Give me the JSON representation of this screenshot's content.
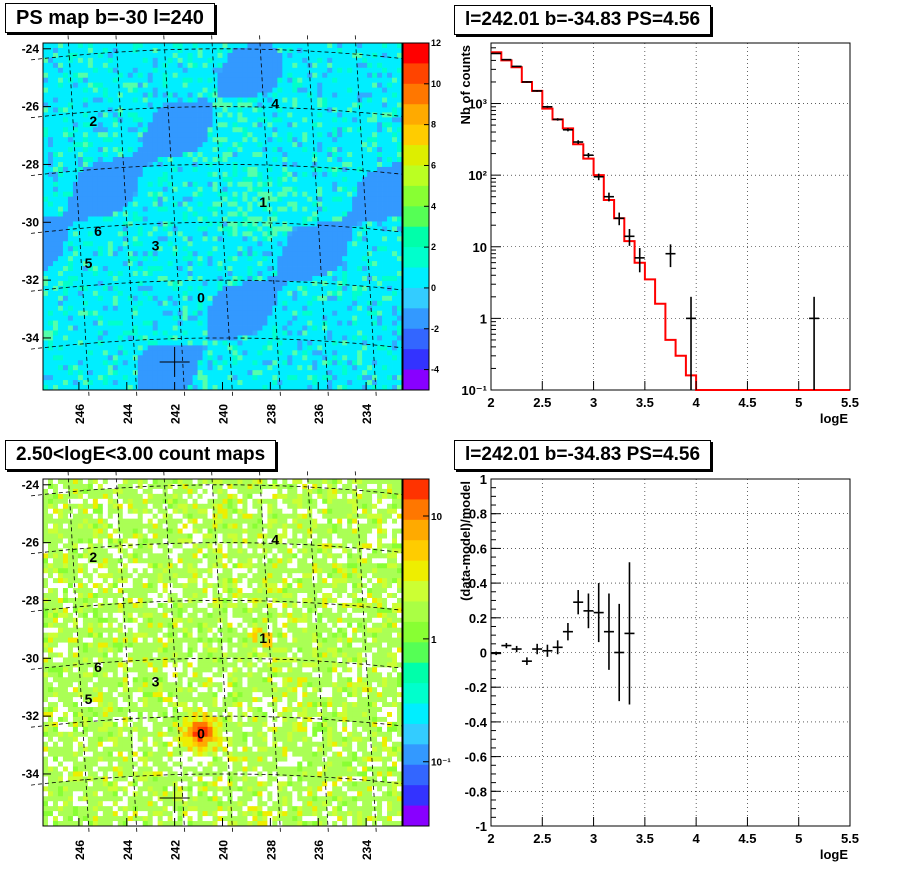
{
  "panels": {
    "ps_map": {
      "title": "PS map b=-30 l=240",
      "x_ticks": [
        "246",
        "244",
        "242",
        "240",
        "238",
        "236",
        "234"
      ],
      "y_ticks": [
        "-24",
        "-26",
        "-28",
        "-30",
        "-32",
        "-34"
      ],
      "colorbar_ticks": [
        "12",
        "10",
        "8",
        "6",
        "4",
        "2",
        "0",
        "-2",
        "-4"
      ],
      "sources": [
        "0",
        "1",
        "2",
        "3",
        "4",
        "5",
        "6"
      ],
      "colors": {
        "background": "#00f0ff",
        "cool": "#33aaff",
        "warm": "#55ffaa"
      }
    },
    "count_map": {
      "title": "2.50<logE<3.00 count maps",
      "x_ticks": [
        "246",
        "244",
        "242",
        "240",
        "238",
        "236",
        "234"
      ],
      "y_ticks": [
        "-24",
        "-26",
        "-28",
        "-30",
        "-32",
        "-34"
      ],
      "colorbar_ticks": [
        "10",
        "1",
        "10⁻¹"
      ],
      "sources": [
        "0",
        "1",
        "2",
        "3",
        "4",
        "5",
        "6"
      ],
      "colors": {
        "background": "#aaff55",
        "hot": "#ff3300",
        "empty": "#ffffff"
      }
    },
    "spectrum": {
      "title": "l=242.01 b=-34.83 PS=4.56",
      "xlabel": "logE",
      "ylabel": "Nb of counts",
      "x_ticks": [
        "2",
        "2.5",
        "3",
        "3.5",
        "4",
        "4.5",
        "5",
        "5.5"
      ],
      "y_ticks": [
        "10⁻¹",
        "1",
        "10",
        "10²",
        "10³"
      ]
    },
    "residual": {
      "title": "l=242.01 b=-34.83 PS=4.56",
      "xlabel": "logE",
      "ylabel": "(data-model)/model",
      "x_ticks": [
        "2",
        "2.5",
        "3",
        "3.5",
        "4",
        "4.5",
        "5",
        "5.5"
      ],
      "y_ticks": [
        "1",
        "0.8",
        "0.6",
        "0.4",
        "0.2",
        "0",
        "-0.2",
        "-0.4",
        "-0.6",
        "-0.8",
        "-1"
      ]
    }
  },
  "chart_data": [
    {
      "type": "heatmap",
      "title": "PS map b=-30 l=240",
      "xlim": [
        247.5,
        232.5
      ],
      "ylim": [
        -35.8,
        -23.8
      ],
      "zlim": [
        -5,
        12
      ],
      "grid": true,
      "sources": [
        {
          "label": "0",
          "l": 240.9,
          "b": -32.6
        },
        {
          "label": "1",
          "l": 238.3,
          "b": -29.3
        },
        {
          "label": "2",
          "l": 245.4,
          "b": -26.5
        },
        {
          "label": "3",
          "l": 242.8,
          "b": -30.8
        },
        {
          "label": "4",
          "l": 237.8,
          "b": -25.9
        },
        {
          "label": "5",
          "l": 245.6,
          "b": -31.4
        },
        {
          "label": "6",
          "l": 245.2,
          "b": -30.3
        }
      ],
      "cross": {
        "l": 242.0,
        "b": -34.83
      }
    },
    {
      "type": "heatmap",
      "title": "2.50<logE<3.00 count maps",
      "xlim": [
        247.5,
        232.5
      ],
      "ylim": [
        -35.8,
        -23.8
      ],
      "zscale": "log",
      "zlim": [
        0.03,
        20
      ],
      "grid": true,
      "sources": [
        {
          "label": "0",
          "l": 240.9,
          "b": -32.6
        },
        {
          "label": "1",
          "l": 238.3,
          "b": -29.3
        },
        {
          "label": "2",
          "l": 245.4,
          "b": -26.5
        },
        {
          "label": "3",
          "l": 242.8,
          "b": -30.8
        },
        {
          "label": "4",
          "l": 237.8,
          "b": -25.9
        },
        {
          "label": "5",
          "l": 245.6,
          "b": -31.4
        },
        {
          "label": "6",
          "l": 245.2,
          "b": -30.3
        }
      ],
      "cross": {
        "l": 242.0,
        "b": -34.83
      }
    },
    {
      "type": "line",
      "title": "l=242.01 b=-34.83 PS=4.56",
      "xlabel": "logE",
      "ylabel": "Nb of counts",
      "xlim": [
        2,
        5.5
      ],
      "ylim": [
        0.1,
        7000
      ],
      "yscale": "log",
      "grid": true,
      "series": [
        {
          "style": "step",
          "color": "#ff0000",
          "x": [
            2.0,
            2.1,
            2.2,
            2.3,
            2.4,
            2.5,
            2.6,
            2.7,
            2.8,
            2.9,
            3.0,
            3.1,
            3.2,
            3.3,
            3.4,
            3.5,
            3.6,
            3.7,
            3.8,
            3.9,
            4.0
          ],
          "y": [
            5200,
            4000,
            3200,
            2000,
            1500,
            850,
            600,
            450,
            270,
            170,
            100,
            45,
            25,
            12,
            6,
            3.5,
            1.6,
            0.5,
            0.3,
            0.16,
            0.1
          ]
        },
        {
          "style": "errorbar",
          "color": "#000000",
          "x": [
            2.05,
            2.15,
            2.25,
            2.35,
            2.45,
            2.55,
            2.65,
            2.75,
            2.85,
            2.95,
            3.05,
            3.15,
            3.25,
            3.35,
            3.45,
            3.75,
            3.95,
            5.15
          ],
          "y": [
            5000,
            4100,
            3300,
            2000,
            1500,
            900,
            600,
            430,
            290,
            190,
            95,
            50,
            25,
            14,
            7,
            8,
            1,
            1
          ],
          "err": [
            70,
            64,
            57,
            45,
            39,
            30,
            24,
            21,
            17,
            14,
            10,
            7,
            5,
            3.7,
            2.6,
            2.8,
            1,
            1
          ]
        }
      ]
    },
    {
      "type": "scatter",
      "title": "l=242.01 b=-34.83 PS=4.56",
      "xlabel": "logE",
      "ylabel": "(data-model)/model",
      "xlim": [
        2,
        5.5
      ],
      "ylim": [
        -1,
        1
      ],
      "grid": true,
      "series": [
        {
          "style": "errorbar",
          "color": "#000000",
          "x": [
            2.05,
            2.15,
            2.25,
            2.35,
            2.45,
            2.55,
            2.65,
            2.75,
            2.85,
            2.95,
            3.05,
            3.15,
            3.25,
            3.35
          ],
          "y": [
            -0.005,
            0.04,
            0.02,
            -0.05,
            0.02,
            0.01,
            0.03,
            0.12,
            0.29,
            0.24,
            0.23,
            0.12,
            0.0,
            0.11
          ],
          "err": [
            0.01,
            0.015,
            0.018,
            0.022,
            0.03,
            0.035,
            0.04,
            0.05,
            0.07,
            0.1,
            0.17,
            0.22,
            0.28,
            0.41
          ]
        }
      ]
    }
  ]
}
